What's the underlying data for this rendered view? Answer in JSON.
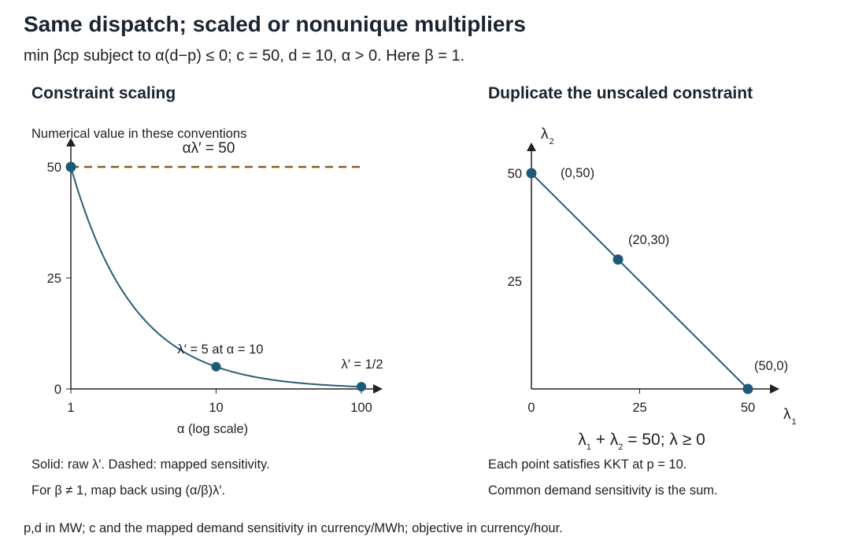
{
  "title": "Same dispatch; scaled or nonunique multipliers",
  "subtitle": "min βcp subject to α(d−p) ≤ 0; c = 50, d = 10, α > 0. Here β = 1.",
  "footer": "p,d in MW; c and the mapped demand sensitivity in currency/MWh; objective in currency/hour.",
  "colors": {
    "curve": "#2a5d78",
    "point": "#1d5a78",
    "dashed": "#8b5a1f",
    "axis": "#222222"
  },
  "chart_data": [
    {
      "type": "line",
      "title": "Constraint scaling",
      "ylabel": "Numerical value in these conventions",
      "xlabel": "α (log scale)",
      "xscale": "log",
      "xlim": [
        1,
        100
      ],
      "ylim": [
        0,
        50
      ],
      "xticks": [
        {
          "value": 1,
          "label": "1"
        },
        {
          "value": 10,
          "label": "10"
        },
        {
          "value": 100,
          "label": "100"
        }
      ],
      "yticks": [
        {
          "value": 0,
          "label": "0"
        },
        {
          "value": 25,
          "label": "25"
        },
        {
          "value": 50,
          "label": "50"
        }
      ],
      "series": [
        {
          "style": "solid",
          "formula": "λ′ = 50/α"
        },
        {
          "style": "dashed",
          "label": "αλ′ = 50",
          "x": [
            1,
            100
          ],
          "y": [
            50,
            50
          ]
        }
      ],
      "points": [
        {
          "x": 1,
          "y": 50,
          "label": ""
        },
        {
          "x": 10,
          "y": 5,
          "label": "λ′ = 5 at α = 10"
        },
        {
          "x": 100,
          "y": 0.5,
          "label": "λ′ = 1/2"
        }
      ],
      "notes": [
        "Solid: raw λ′. Dashed: mapped sensitivity.",
        "For β ≠ 1, map back using (α/β)λ′."
      ]
    },
    {
      "type": "line",
      "title": "Duplicate the unscaled constraint",
      "xlabel": "λ",
      "xlabel_sub": "1",
      "ylabel": "λ",
      "ylabel_sub": "2",
      "xlim": [
        0,
        50
      ],
      "ylim": [
        0,
        50
      ],
      "xticks": [
        {
          "value": 0,
          "label": "0"
        },
        {
          "value": 25,
          "label": "25"
        },
        {
          "value": 50,
          "label": "50"
        }
      ],
      "yticks": [
        {
          "value": 25,
          "label": "25"
        },
        {
          "value": 50,
          "label": "50"
        }
      ],
      "series": [
        {
          "style": "solid",
          "x": [
            0,
            50
          ],
          "y": [
            50,
            0
          ]
        }
      ],
      "points": [
        {
          "x": 0,
          "y": 50,
          "label": "(0,50)"
        },
        {
          "x": 20,
          "y": 30,
          "label": "(20,30)"
        },
        {
          "x": 50,
          "y": 0,
          "label": "(50,0)"
        }
      ],
      "caption": {
        "a": "λ",
        "a_sub": "1",
        "b": " + λ",
        "b_sub": "2",
        "c": " = 50; λ ≥ 0"
      },
      "notes": [
        "Each point satisfies KKT at p = 10.",
        "Common demand sensitivity is the sum."
      ]
    }
  ]
}
